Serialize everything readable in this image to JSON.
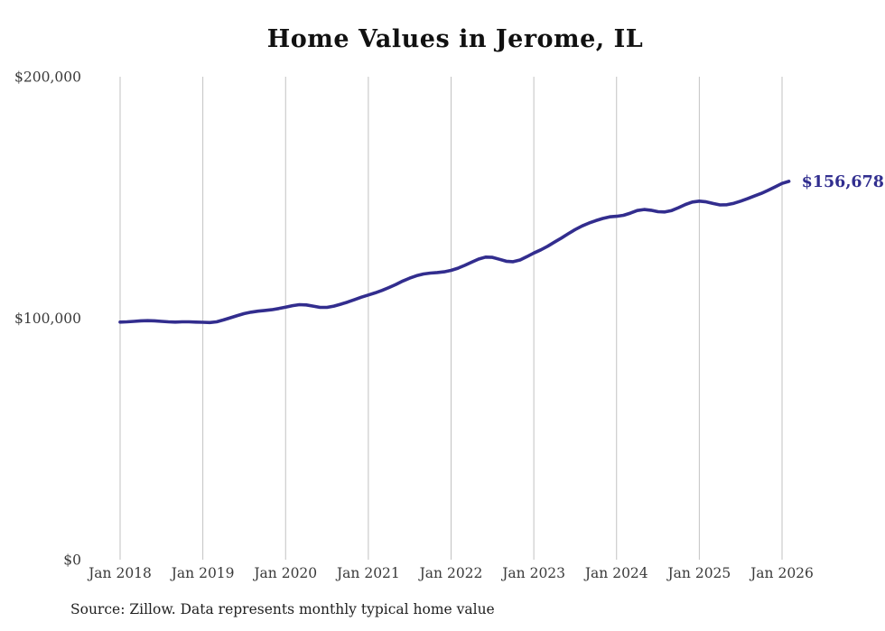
{
  "chart": {
    "title": "Home Values in Jerome, IL",
    "source": "Source: Zillow. Data represents monthly typical home value",
    "end_label": "$156,678",
    "colors": {
      "line": "#322d8e",
      "grid": "#c2c2c2",
      "axis_text": "#3a3a3a",
      "title_text": "#111111",
      "end_label_text": "#312e8f",
      "background": "#ffffff"
    }
  },
  "chart_data": {
    "type": "line",
    "title": "Home Values in Jerome, IL",
    "xlabel": "",
    "ylabel": "",
    "ylim": [
      0,
      200000
    ],
    "grid": "vertical-only",
    "legend": "none",
    "annotation": "$156,678",
    "y_ticks": [
      0,
      100000,
      200000
    ],
    "y_tick_labels": [
      "$0",
      "$100,000",
      "$200,000"
    ],
    "x_tick_labels": [
      "Jan 2018",
      "Jan 2019",
      "Jan 2020",
      "Jan 2021",
      "Jan 2022",
      "Jan 2023",
      "Jan 2024",
      "Jan 2025",
      "Jan 2026"
    ],
    "x": [
      "2018-01",
      "2018-02",
      "2018-03",
      "2018-04",
      "2018-05",
      "2018-06",
      "2018-07",
      "2018-08",
      "2018-09",
      "2018-10",
      "2018-11",
      "2018-12",
      "2019-01",
      "2019-02",
      "2019-03",
      "2019-04",
      "2019-05",
      "2019-06",
      "2019-07",
      "2019-08",
      "2019-09",
      "2019-10",
      "2019-11",
      "2019-12",
      "2020-01",
      "2020-02",
      "2020-03",
      "2020-04",
      "2020-05",
      "2020-06",
      "2020-07",
      "2020-08",
      "2020-09",
      "2020-10",
      "2020-11",
      "2020-12",
      "2021-01",
      "2021-02",
      "2021-03",
      "2021-04",
      "2021-05",
      "2021-06",
      "2021-07",
      "2021-08",
      "2021-09",
      "2021-10",
      "2021-11",
      "2021-12",
      "2022-01",
      "2022-02",
      "2022-03",
      "2022-04",
      "2022-05",
      "2022-06",
      "2022-07",
      "2022-08",
      "2022-09",
      "2022-10",
      "2022-11",
      "2022-12",
      "2023-01",
      "2023-02",
      "2023-03",
      "2023-04",
      "2023-05",
      "2023-06",
      "2023-07",
      "2023-08",
      "2023-09",
      "2023-10",
      "2023-11",
      "2023-12",
      "2024-01",
      "2024-02",
      "2024-03",
      "2024-04",
      "2024-05",
      "2024-06",
      "2024-07",
      "2024-08",
      "2024-09",
      "2024-10",
      "2024-11",
      "2024-12",
      "2025-01",
      "2025-02",
      "2025-03",
      "2025-04",
      "2025-05",
      "2025-06",
      "2025-07",
      "2025-08",
      "2025-09",
      "2025-10",
      "2025-11",
      "2025-12",
      "2026-01",
      "2026-02"
    ],
    "values": [
      98400,
      98500,
      98700,
      98900,
      99000,
      98900,
      98700,
      98500,
      98400,
      98500,
      98500,
      98400,
      98300,
      98200,
      98500,
      99300,
      100200,
      101100,
      101900,
      102500,
      102900,
      103200,
      103500,
      104000,
      104600,
      105200,
      105600,
      105500,
      105000,
      104500,
      104500,
      105000,
      105800,
      106700,
      107700,
      108700,
      109600,
      110500,
      111500,
      112700,
      114000,
      115400,
      116600,
      117600,
      118300,
      118700,
      118900,
      119200,
      119800,
      120700,
      121900,
      123200,
      124500,
      125300,
      125200,
      124400,
      123600,
      123400,
      124100,
      125500,
      127000,
      128300,
      129800,
      131500,
      133200,
      135000,
      136700,
      138200,
      139400,
      140400,
      141300,
      142000,
      142200,
      142600,
      143500,
      144600,
      145000,
      144700,
      144100,
      144000,
      144600,
      145800,
      147100,
      148100,
      148500,
      148200,
      147500,
      146900,
      147000,
      147600,
      148500,
      149500,
      150600,
      151700,
      153000,
      154400,
      155800,
      156678
    ]
  }
}
